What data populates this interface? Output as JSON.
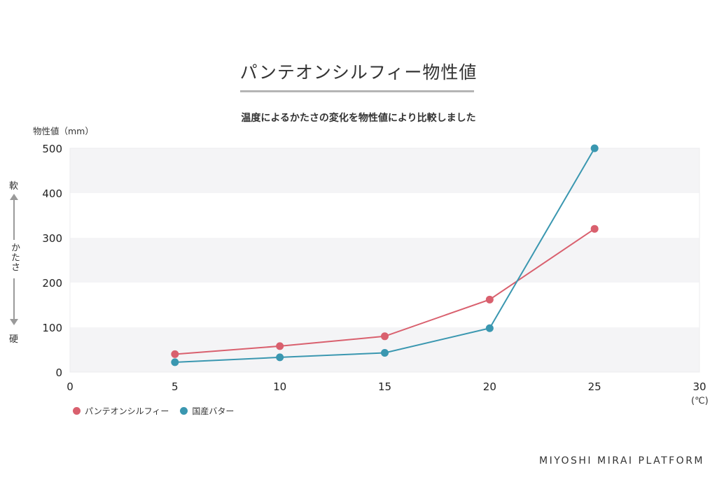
{
  "page": {
    "title": "パンテオンシルフィー物性値",
    "footer": "MIYOSHI MIRAI PLATFORM"
  },
  "chart_data": {
    "type": "line",
    "title": "温度によるかたさの変化を物性値により比較しました",
    "ylabel": "物性値（mm）",
    "xunit": "(℃)",
    "side_labels": {
      "top": "軟",
      "middle": "かたさ",
      "bottom": "硬"
    },
    "xlim": [
      0,
      30
    ],
    "ylim": [
      0,
      500
    ],
    "xticks": [
      0,
      5,
      10,
      15,
      20,
      25,
      30
    ],
    "yticks": [
      0,
      100,
      200,
      300,
      400,
      500
    ],
    "grid": "horizontal alternating bands",
    "legend_position": "bottom-left",
    "series": [
      {
        "name": "パンテオンシルフィー",
        "color": "#d9606e",
        "x": [
          5,
          10,
          15,
          20,
          25
        ],
        "y": [
          40,
          58,
          80,
          162,
          320
        ]
      },
      {
        "name": "国産バター",
        "color": "#3a97b0",
        "x": [
          5,
          10,
          15,
          20,
          25
        ],
        "y": [
          22,
          33,
          43,
          98,
          500
        ]
      }
    ]
  }
}
